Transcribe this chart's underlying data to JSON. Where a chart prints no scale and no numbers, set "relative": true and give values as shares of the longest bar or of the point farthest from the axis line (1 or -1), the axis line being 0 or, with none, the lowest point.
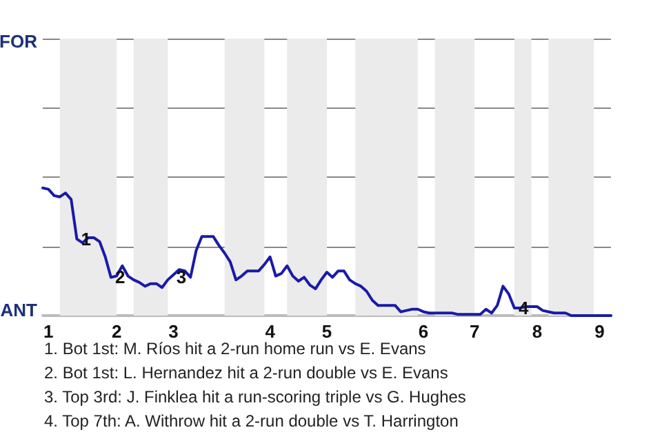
{
  "chart_data": {
    "type": "line",
    "relative": true,
    "categories": [
      null,
      "1",
      null,
      null,
      null,
      null,
      null,
      null,
      null,
      null,
      null,
      null,
      null,
      "2",
      null,
      null,
      null,
      null,
      null,
      null,
      null,
      null,
      null,
      "3",
      null,
      null,
      null,
      null,
      null,
      null,
      null,
      null,
      null,
      null,
      null,
      null,
      null,
      null,
      null,
      null,
      "4",
      null,
      null,
      null,
      null,
      null,
      null,
      null,
      null,
      null,
      "5",
      null,
      null,
      null,
      null,
      null,
      null,
      null,
      null,
      null,
      null,
      null,
      null,
      null,
      null,
      null,
      null,
      "6",
      null,
      null,
      null,
      null,
      null,
      null,
      null,
      null,
      "7",
      null,
      null,
      null,
      null,
      null,
      null,
      null,
      null,
      null,
      null,
      "8",
      null,
      null,
      null,
      null,
      null,
      null,
      null,
      null,
      null,
      null,
      "9",
      null,
      null
    ],
    "series": [
      {
        "color": "#1a1aa8",
        "values": [
          1,
          0.99,
          0.94,
          0.93,
          0.96,
          0.91,
          0.6,
          0.57,
          0.61,
          0.61,
          0.58,
          0.46,
          0.3,
          0.31,
          0.39,
          0.31,
          0.28,
          0.26,
          0.23,
          0.25,
          0.25,
          0.22,
          0.28,
          0.32,
          0.36,
          0.35,
          0.3,
          0.51,
          0.62,
          0.62,
          0.62,
          0.55,
          0.49,
          0.42,
          0.28,
          0.31,
          0.35,
          0.35,
          0.35,
          0.4,
          0.46,
          0.31,
          0.33,
          0.39,
          0.31,
          0.27,
          0.3,
          0.24,
          0.21,
          0.28,
          0.34,
          0.3,
          0.35,
          0.35,
          0.28,
          0.25,
          0.23,
          0.19,
          0.12,
          0.08,
          0.08,
          0.08,
          0.08,
          0.03,
          0.04,
          0.05,
          0.05,
          0.03,
          0.02,
          0.02,
          0.02,
          0.02,
          0.02,
          0.01,
          0.01,
          0.01,
          0.01,
          0.01,
          0.05,
          0.02,
          0.08,
          0.23,
          0.17,
          0.06,
          0.06,
          0.07,
          0.07,
          0.07,
          0.04,
          0.03,
          0.02,
          0.02,
          0.02,
          0,
          0,
          0,
          0,
          0,
          0,
          0,
          0
        ],
        "marker": "none"
      }
    ],
    "ylim": [
      0,
      2.17
    ],
    "grid": "y",
    "annotations": [
      "FOR",
      "ANT",
      {
        "text": "1",
        "y": 0.6
      },
      {
        "text": "2",
        "y": 0.3
      },
      {
        "text": "3",
        "y": 0.3
      },
      {
        "text": "4",
        "y": 0.06
      },
      "1. Bot 1st: M. Ríos hit a 2-run home run vs E. Evans",
      "2. Bot 1st: L. Hernandez hit a 2-run double vs E. Evans",
      "3. Top 3rd: J. Finklea hit a run-scoring triple vs G. Hughes",
      "4. Top 7th: A. Withrow hit a 2-run double vs T. Harrington"
    ]
  }
}
